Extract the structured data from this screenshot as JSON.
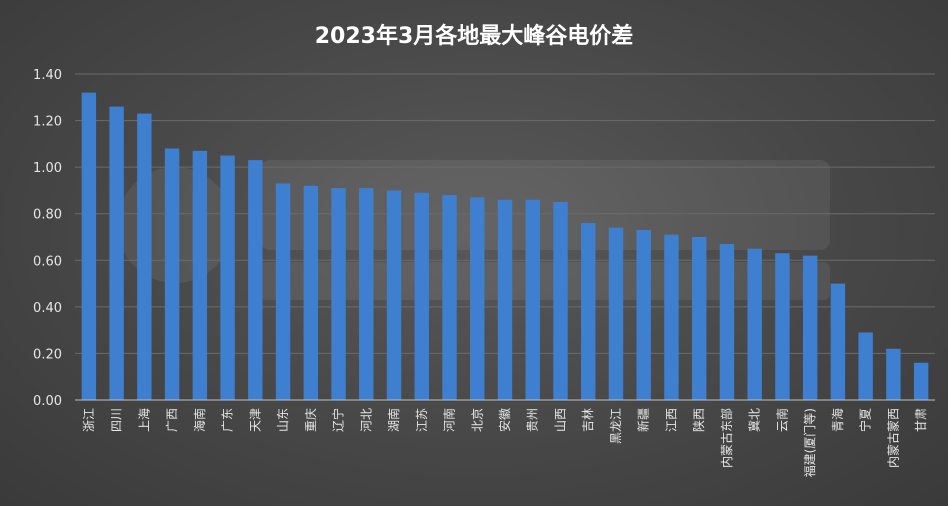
{
  "chart_data": {
    "type": "bar",
    "title": "2023年3月各地最大峰谷电价差",
    "xlabel": "",
    "ylabel": "",
    "ylim": [
      0,
      1.4
    ],
    "yticks": [
      "0.00",
      "0.20",
      "0.40",
      "0.60",
      "0.80",
      "1.00",
      "1.20",
      "1.40"
    ],
    "grid": true,
    "bar_color": "#3f7fd0",
    "categories": [
      "浙江",
      "四川",
      "上海",
      "广西",
      "海南",
      "广东",
      "天津",
      "山东",
      "重庆",
      "辽宁",
      "河北",
      "湖南",
      "江苏",
      "河南",
      "北京",
      "安徽",
      "贵州",
      "山西",
      "吉林",
      "黑龙江",
      "新疆",
      "江西",
      "陕西",
      "内蒙古东部",
      "冀北",
      "云南",
      "福建(厦门等)",
      "青海",
      "宁夏",
      "内蒙古蒙西",
      "甘肃"
    ],
    "values": [
      1.32,
      1.26,
      1.23,
      1.08,
      1.07,
      1.05,
      1.03,
      0.93,
      0.92,
      0.91,
      0.91,
      0.9,
      0.89,
      0.88,
      0.87,
      0.86,
      0.86,
      0.85,
      0.76,
      0.74,
      0.73,
      0.71,
      0.7,
      0.67,
      0.65,
      0.63,
      0.62,
      0.5,
      0.29,
      0.22,
      0.16
    ]
  }
}
